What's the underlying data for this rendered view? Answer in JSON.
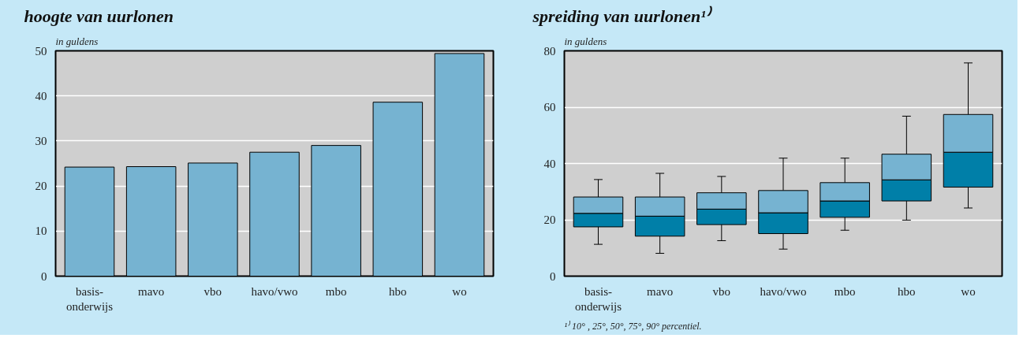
{
  "chart_data": [
    {
      "type": "bar",
      "title": "hoogte van uurlonen",
      "ylabel": "in guldens",
      "categories": [
        "basis-onderwijs",
        "mavo",
        "vbo",
        "havo/vwo",
        "mbo",
        "hbo",
        "wo"
      ],
      "values": [
        24.2,
        24.3,
        25.1,
        27.5,
        29.0,
        38.6,
        49.4
      ],
      "color": "#76b3d1",
      "ylim": [
        0,
        50
      ],
      "yticks": [
        0,
        10,
        20,
        30,
        40,
        50
      ],
      "grid": "y"
    },
    {
      "type": "box",
      "title": "spreiding van uurlonen¹⁾",
      "ylabel": "in guldens",
      "categories": [
        "basis-onderwijs",
        "mavo",
        "vbo",
        "havo/vwo",
        "mbo",
        "hbo",
        "wo"
      ],
      "color": "#76b3d1",
      "series": [
        {
          "color": "#007fa8",
          "boxes": [
            {
              "low": 11.3,
              "q1": 17.5,
              "median": 22.3,
              "q3": 28.1,
              "high": 34.3
            },
            {
              "low": 8.1,
              "q1": 14.2,
              "median": 21.3,
              "q3": 28.1,
              "high": 36.5
            },
            {
              "low": 12.6,
              "q1": 18.3,
              "median": 23.8,
              "q3": 29.6,
              "high": 35.4
            },
            {
              "low": 9.6,
              "q1": 15.1,
              "median": 22.5,
              "q3": 30.4,
              "high": 41.9
            },
            {
              "low": 16.3,
              "q1": 20.9,
              "median": 26.7,
              "q3": 33.2,
              "high": 41.9
            },
            {
              "low": 19.9,
              "q1": 26.7,
              "median": 34.2,
              "q3": 43.3,
              "high": 56.8
            },
            {
              "low": 24.2,
              "q1": 31.6,
              "median": 44.0,
              "q3": 57.4,
              "high": 75.7
            }
          ]
        }
      ],
      "ylim": [
        0,
        80
      ],
      "yticks": [
        0,
        20,
        40,
        60,
        80
      ],
      "grid": "y",
      "annotations": [
        "¹⁾ 10° , 25°, 50°, 75°, 90° percentiel."
      ]
    }
  ]
}
